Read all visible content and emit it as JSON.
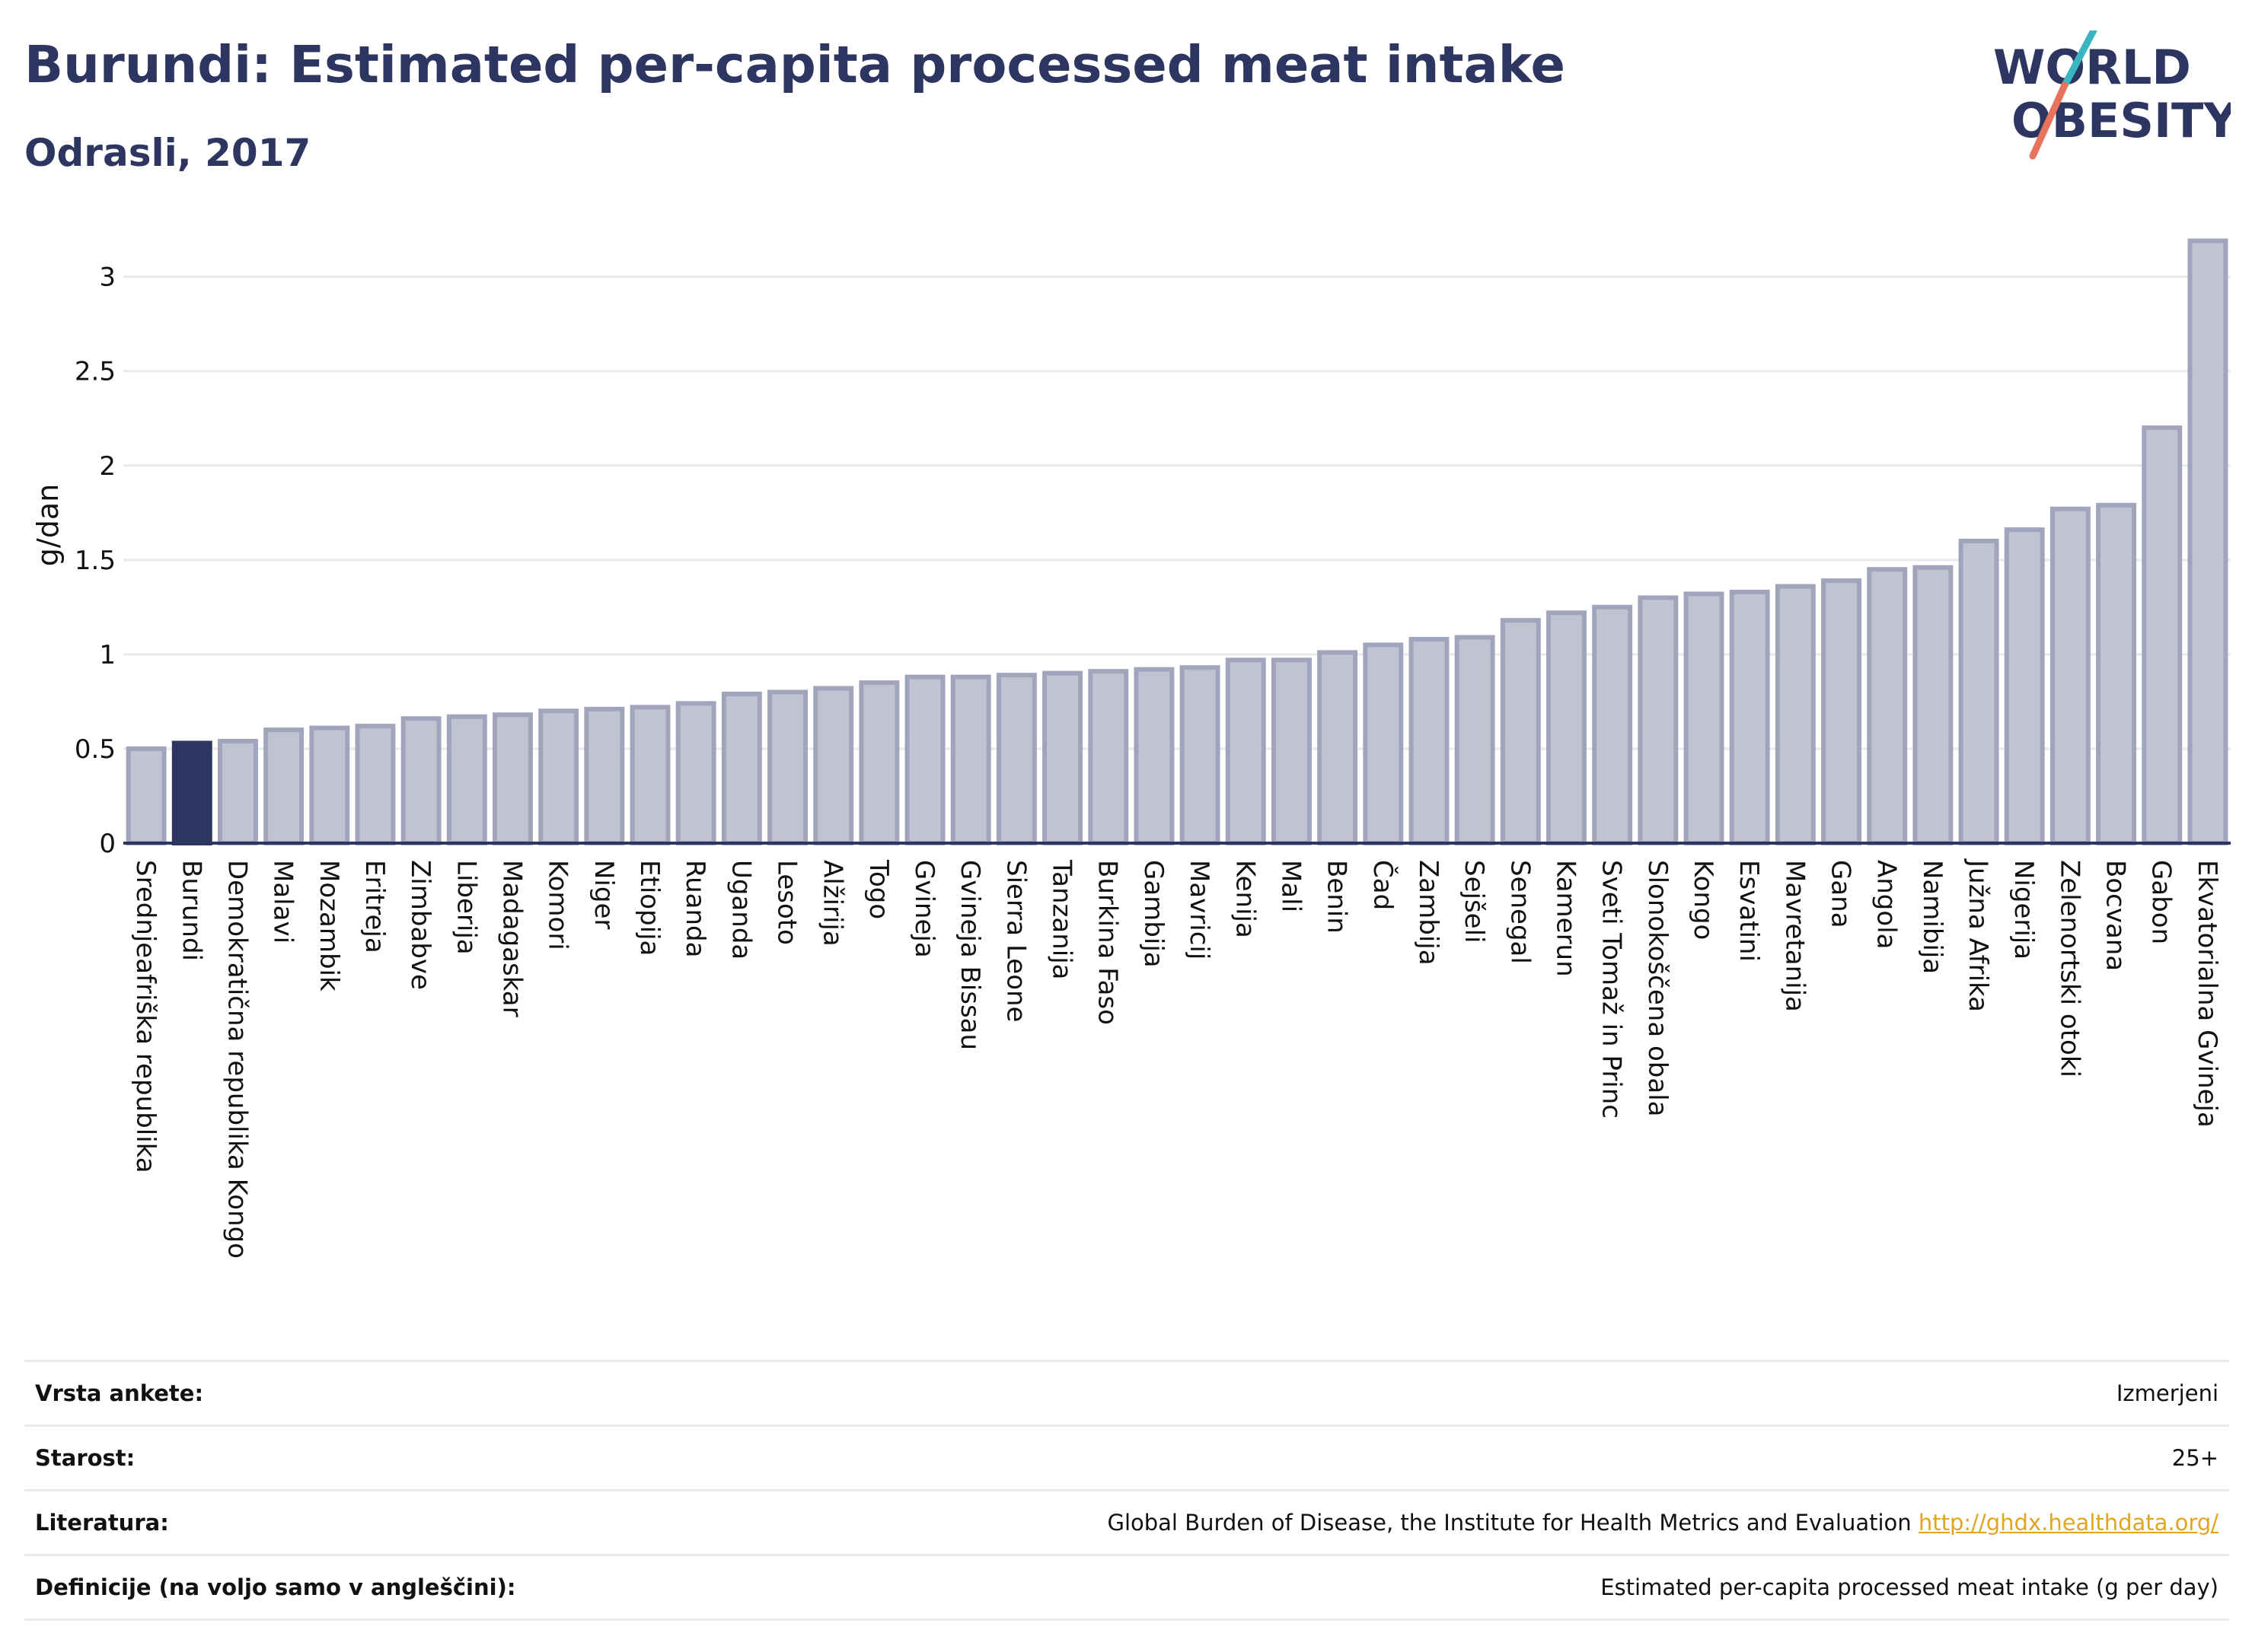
{
  "header": {
    "title": "Burundi: Estimated per-capita processed meat intake",
    "subtitle": "Odrasli, 2017"
  },
  "logo": {
    "line1": "WORLD",
    "line2": "OBESITY"
  },
  "colors": {
    "title": "#2d3561",
    "highlight_bar": "#2d3561",
    "bar_fill": "#c0c4d2",
    "bar_stroke": "#a0a5bc",
    "link": "#e3a521",
    "logo_teal": "#3ab5c1",
    "logo_coral": "#e8735c"
  },
  "chart_data": {
    "type": "bar",
    "title": "Burundi: Estimated per-capita processed meat intake",
    "subtitle": "Odrasli, 2017",
    "xlabel": "",
    "ylabel": "g/dan",
    "ylim": [
      0,
      3.2
    ],
    "yticks": [
      0,
      0.5,
      1,
      1.5,
      2,
      2.5,
      3
    ],
    "grid": true,
    "highlight": "Burundi",
    "categories": [
      "Srednjeafriška republika",
      "Burundi",
      "Demokratična republika Kongo",
      "Malavi",
      "Mozambik",
      "Eritreja",
      "Zimbabve",
      "Liberija",
      "Madagaskar",
      "Komori",
      "Niger",
      "Etiopija",
      "Ruanda",
      "Uganda",
      "Lesoto",
      "Alžirija",
      "Togo",
      "Gvineja",
      "Gvineja Bissau",
      "Sierra Leone",
      "Tanzanija",
      "Burkina Faso",
      "Gambija",
      "Mavricij",
      "Kenija",
      "Mali",
      "Benin",
      "Čad",
      "Zambija",
      "Sejšeli",
      "Senegal",
      "Kamerun",
      "Sveti Tomaž in Princ",
      "Slonokoščena obala",
      "Kongo",
      "Esvatini",
      "Mavretanija",
      "Gana",
      "Angola",
      "Namibija",
      "Južna Afrika",
      "Nigerija",
      "Zelenortski otoki",
      "Bocvana",
      "Gabon",
      "Ekvatorialna Gvineja"
    ],
    "values": [
      0.5,
      0.53,
      0.54,
      0.6,
      0.61,
      0.62,
      0.66,
      0.67,
      0.68,
      0.7,
      0.71,
      0.72,
      0.74,
      0.79,
      0.8,
      0.82,
      0.85,
      0.88,
      0.88,
      0.89,
      0.9,
      0.91,
      0.92,
      0.93,
      0.97,
      0.97,
      1.01,
      1.05,
      1.08,
      1.09,
      1.18,
      1.22,
      1.25,
      1.3,
      1.32,
      1.33,
      1.36,
      1.39,
      1.45,
      1.46,
      1.6,
      1.66,
      1.77,
      1.79,
      2.2,
      3.19
    ]
  },
  "meta": [
    {
      "label": "Vrsta ankete:",
      "value": "Izmerjeni"
    },
    {
      "label": "Starost:",
      "value": "25+"
    },
    {
      "label": "Literatura:",
      "value": "Global Burden of Disease, the Institute for Health Metrics and Evaluation",
      "link": "http://ghdx.healthdata.org/"
    },
    {
      "label": "Definicije (na voljo samo v angleščini):",
      "value": "Estimated per-capita processed meat intake (g per day)"
    }
  ]
}
